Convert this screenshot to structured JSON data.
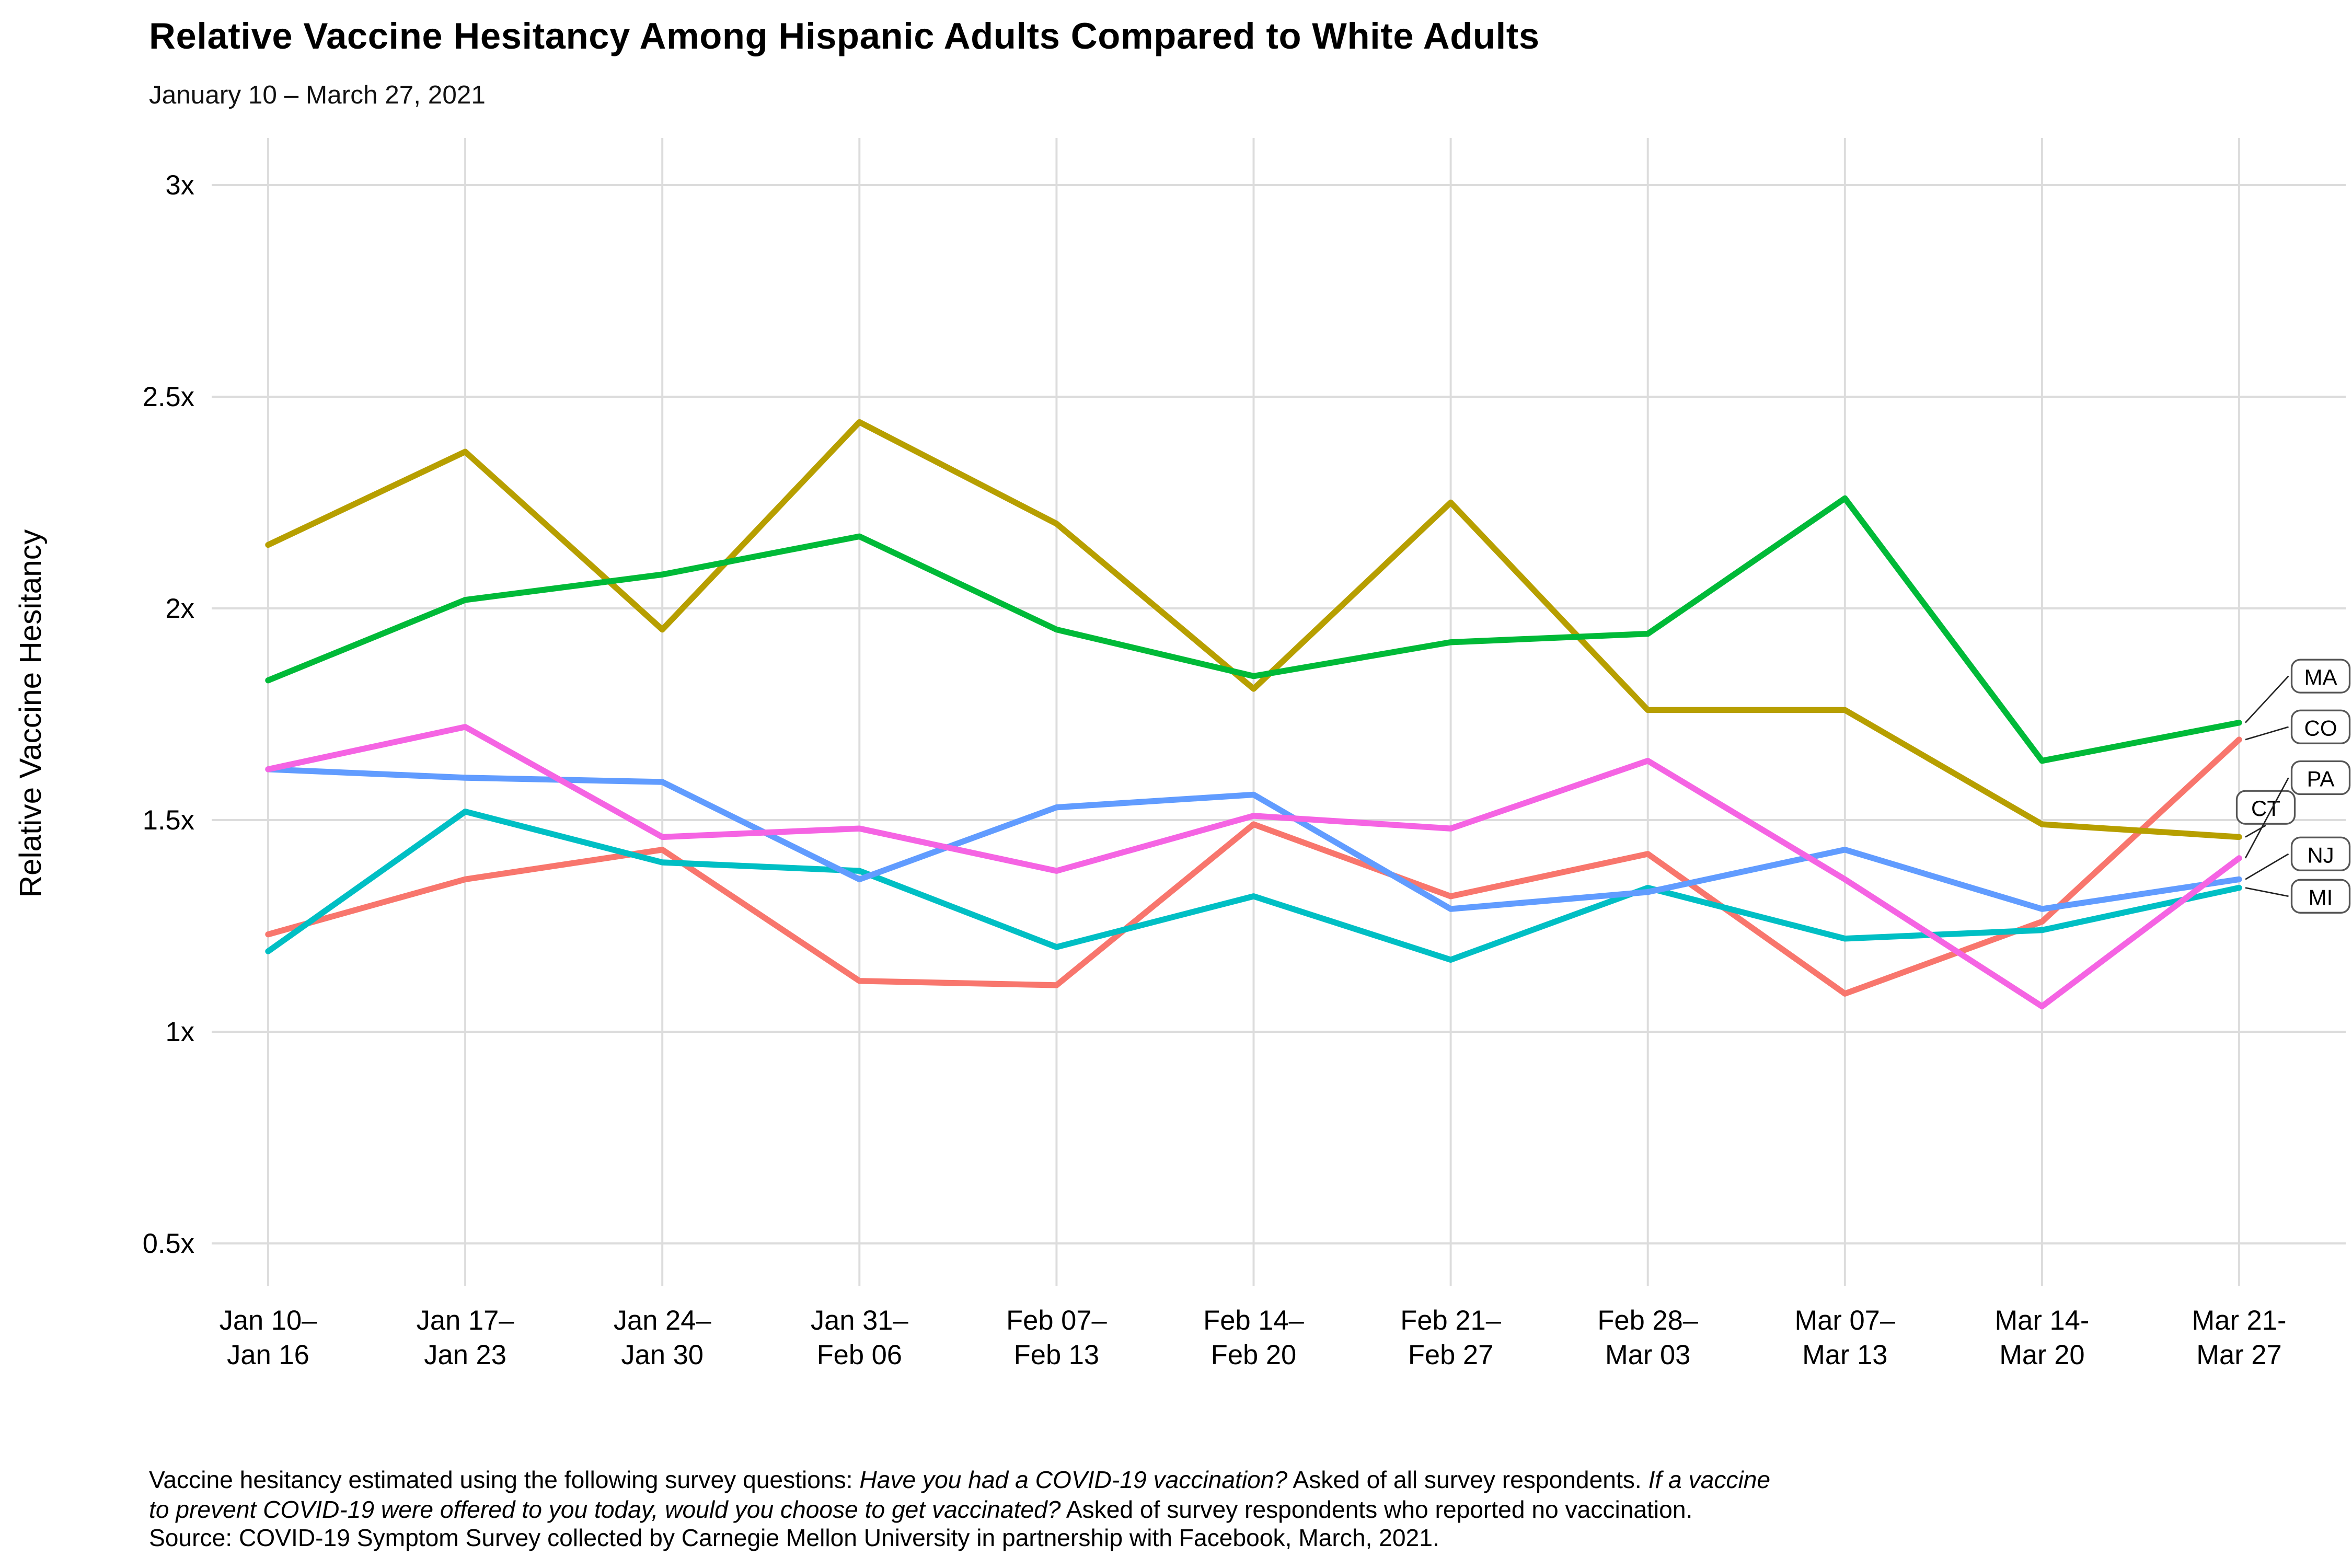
{
  "page": {
    "title": "Relative Vaccine Hesitancy Among Hispanic Adults Compared to White Adults",
    "subtitle": "January 10 – March 27, 2021"
  },
  "caption": {
    "lines": [
      [
        {
          "text": "Vaccine hesitancy estimated using the following survey questions: ",
          "italic": false
        },
        {
          "text": "Have you had a COVID-19 vaccination?",
          "italic": true
        },
        {
          "text": " Asked of all survey respondents. ",
          "italic": false
        },
        {
          "text": "If a vaccine",
          "italic": true
        }
      ],
      [
        {
          "text": "to prevent COVID-19 were offered to you today, would you choose to get vaccinated?",
          "italic": true
        },
        {
          "text": " Asked of survey respondents who reported no vaccination.",
          "italic": false
        }
      ],
      [
        {
          "text": "Source: COVID-19 Symptom Survey collected by Carnegie Mellon University in partnership with Facebook, March, 2021.",
          "italic": false
        }
      ]
    ]
  },
  "chart_data": {
    "type": "line",
    "title": "Relative Vaccine Hesitancy Among Hispanic Adults Compared to White Adults",
    "subtitle": "January 10 – March 27, 2021",
    "xlabel": "",
    "ylabel": "Relative Vaccine Hesitancy",
    "ylim": [
      0.5,
      3
    ],
    "grid": true,
    "legend_position": "right-end-labels",
    "yticks": [
      {
        "value": 3,
        "label": "3x"
      },
      {
        "value": 2.5,
        "label": "2.5x"
      },
      {
        "value": 2,
        "label": "2x"
      },
      {
        "value": 1.5,
        "label": "1.5x"
      },
      {
        "value": 1,
        "label": "1x"
      },
      {
        "value": 0.5,
        "label": "0.5x"
      }
    ],
    "categories": [
      {
        "top": "Jan 10–",
        "bottom": "Jan 16"
      },
      {
        "top": "Jan 17–",
        "bottom": "Jan 23"
      },
      {
        "top": "Jan 24–",
        "bottom": "Jan 30"
      },
      {
        "top": "Jan 31–",
        "bottom": "Feb 06"
      },
      {
        "top": "Feb 07–",
        "bottom": "Feb 13"
      },
      {
        "top": "Feb 14–",
        "bottom": "Feb 20"
      },
      {
        "top": "Feb 21–",
        "bottom": "Feb 27"
      },
      {
        "top": "Feb 28–",
        "bottom": "Mar 03"
      },
      {
        "top": "Mar 07–",
        "bottom": "Mar 13"
      },
      {
        "top": "Mar 14-",
        "bottom": "Mar 20"
      },
      {
        "top": "Mar 21-",
        "bottom": "Mar 27"
      }
    ],
    "series": [
      {
        "name": "CO",
        "color": "#F8766D",
        "label_value": 1.72,
        "values": [
          1.23,
          1.36,
          1.43,
          1.12,
          1.11,
          1.49,
          1.32,
          1.42,
          1.09,
          1.26,
          1.69
        ]
      },
      {
        "name": "CT",
        "color": "#B79F00",
        "label_value": 1.53,
        "label_dx": -35,
        "values": [
          2.15,
          2.37,
          1.95,
          2.44,
          2.2,
          1.81,
          2.25,
          1.76,
          1.76,
          1.49,
          1.46
        ]
      },
      {
        "name": "MA",
        "color": "#00BA38",
        "label_value": 1.84,
        "values": [
          1.83,
          2.02,
          2.08,
          2.17,
          1.95,
          1.84,
          1.92,
          1.94,
          2.26,
          1.64,
          1.73
        ]
      },
      {
        "name": "MI",
        "color": "#00BFC4",
        "label_value": 1.32,
        "values": [
          1.19,
          1.52,
          1.4,
          1.38,
          1.2,
          1.32,
          1.17,
          1.34,
          1.22,
          1.24,
          1.34
        ]
      },
      {
        "name": "NJ",
        "color": "#619CFF",
        "label_value": 1.42,
        "values": [
          1.62,
          1.6,
          1.59,
          1.36,
          1.53,
          1.56,
          1.29,
          1.33,
          1.43,
          1.29,
          1.36
        ]
      },
      {
        "name": "PA",
        "color": "#F564E3",
        "label_value": 1.6,
        "values": [
          1.62,
          1.72,
          1.46,
          1.48,
          1.38,
          1.51,
          1.48,
          1.64,
          1.36,
          1.06,
          1.41
        ]
      }
    ]
  }
}
